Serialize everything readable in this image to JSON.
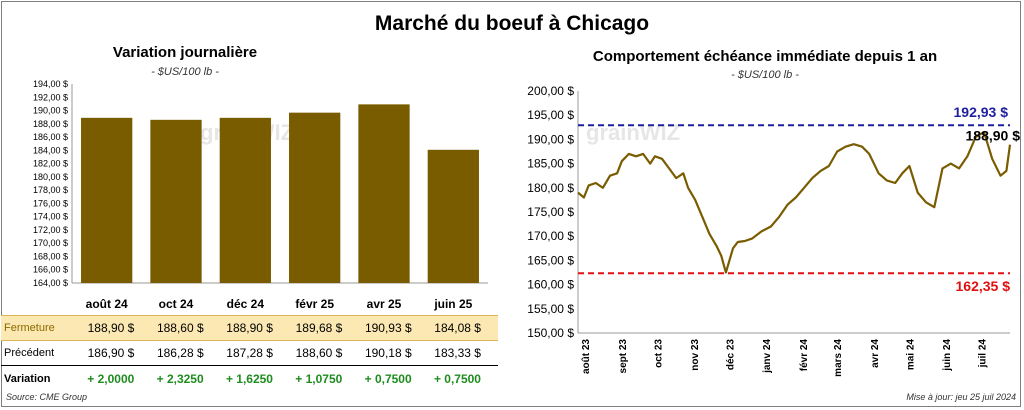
{
  "title": "Marché du boeuf à Chicago",
  "left": {
    "title": "Variation journalière",
    "unit": "- $US/100 lb -"
  },
  "right": {
    "title": "Comportement échéance immédiate depuis 1 an",
    "unit": "- $US/100 lb -"
  },
  "watermark": "grainWIZ",
  "table": {
    "rows": [
      {
        "label": "Fermeture",
        "cells": [
          "188,90 $",
          "188,60 $",
          "188,90 $",
          "189,68 $",
          "190,93 $",
          "184,08 $"
        ]
      },
      {
        "label": "Précédent",
        "cells": [
          "186,90 $",
          "186,28 $",
          "187,28 $",
          "188,60 $",
          "190,18 $",
          "183,33 $"
        ]
      },
      {
        "label": "Variation",
        "cells": [
          "+ 2,0000",
          "+ 2,3250",
          "+ 1,6250",
          "+ 1,0750",
          "+ 0,7500",
          "+ 0,7500"
        ]
      }
    ]
  },
  "footer": {
    "source": "Source: CME Group",
    "updated": "Mise à jour: jeu 25 juil 2024"
  },
  "colors": {
    "bar": "#7a5c00",
    "line": "#7a5c00",
    "max_line": "#1f1fa0",
    "min_line": "#e01010",
    "fermeture_bg": "#fbe8b2",
    "variation_text": "#1e8c1e"
  },
  "chart_data": [
    {
      "type": "bar",
      "categories": [
        "août 24",
        "oct 24",
        "déc 24",
        "févr 25",
        "avr 25",
        "juin 25"
      ],
      "values": [
        188.9,
        188.6,
        188.9,
        189.68,
        190.93,
        184.08
      ],
      "ylim": [
        164,
        194
      ],
      "yticks": [
        "164,00 $",
        "166,00 $",
        "168,00 $",
        "170,00 $",
        "172,00 $",
        "174,00 $",
        "176,00 $",
        "178,00 $",
        "180,00 $",
        "182,00 $",
        "184,00 $",
        "186,00 $",
        "188,00 $",
        "190,00 $",
        "192,00 $",
        "194,00 $"
      ],
      "grid": false
    },
    {
      "type": "line",
      "x": [
        "2023-07-26",
        "2023-07-31",
        "2023-08-04",
        "2023-08-10",
        "2023-08-16",
        "2023-08-22",
        "2023-08-28",
        "2023-09-01",
        "2023-09-07",
        "2023-09-13",
        "2023-09-19",
        "2023-09-25",
        "2023-09-29",
        "2023-10-05",
        "2023-10-11",
        "2023-10-17",
        "2023-10-23",
        "2023-10-27",
        "2023-11-02",
        "2023-11-08",
        "2023-11-14",
        "2023-11-20",
        "2023-11-24",
        "2023-11-28",
        "2023-12-04",
        "2023-12-08",
        "2023-12-14",
        "2023-12-20",
        "2023-12-28",
        "2024-01-05",
        "2024-01-12",
        "2024-01-19",
        "2024-01-26",
        "2024-02-02",
        "2024-02-09",
        "2024-02-16",
        "2024-02-23",
        "2024-03-01",
        "2024-03-08",
        "2024-03-15",
        "2024-03-22",
        "2024-03-28",
        "2024-04-05",
        "2024-04-12",
        "2024-04-19",
        "2024-04-25",
        "2024-05-01",
        "2024-05-08",
        "2024-05-15",
        "2024-05-22",
        "2024-05-29",
        "2024-06-05",
        "2024-06-12",
        "2024-06-19",
        "2024-06-26",
        "2024-07-03",
        "2024-07-10",
        "2024-07-17",
        "2024-07-22",
        "2024-07-25"
      ],
      "values": [
        179,
        178,
        180.5,
        181,
        180,
        182.5,
        183,
        185.5,
        187,
        186.5,
        187,
        185,
        186.5,
        186,
        184,
        182,
        183,
        180,
        177.5,
        174,
        170.5,
        168,
        166,
        162.5,
        167.5,
        168.8,
        169,
        169.5,
        171,
        172,
        174,
        176.5,
        178,
        180,
        182,
        183.5,
        184.5,
        187.5,
        188.5,
        189,
        188.5,
        187,
        183,
        181.5,
        181,
        183,
        184.5,
        179,
        177,
        176,
        184,
        185,
        184,
        186.5,
        190.5,
        191.5,
        186,
        182.5,
        183.5,
        188.9
      ],
      "xticks": [
        "août 23",
        "sept 23",
        "oct 23",
        "nov 23",
        "déc 23",
        "janv 24",
        "févr 24",
        "mars 24",
        "avr 24",
        "mai 24",
        "juin 24",
        "juil 24"
      ],
      "yticks": [
        "150,00 $",
        "155,00 $",
        "160,00 $",
        "165,00 $",
        "170,00 $",
        "175,00 $",
        "180,00 $",
        "185,00 $",
        "190,00 $",
        "195,00 $",
        "200,00 $"
      ],
      "ylim": [
        150,
        200
      ],
      "grid": false,
      "annotations": [
        {
          "label": "192,93 $",
          "value": 192.93,
          "kind": "max"
        },
        {
          "label": "162,35 $",
          "value": 162.35,
          "kind": "min"
        },
        {
          "label": "188,90 $",
          "value": 188.9,
          "kind": "last"
        }
      ]
    }
  ]
}
